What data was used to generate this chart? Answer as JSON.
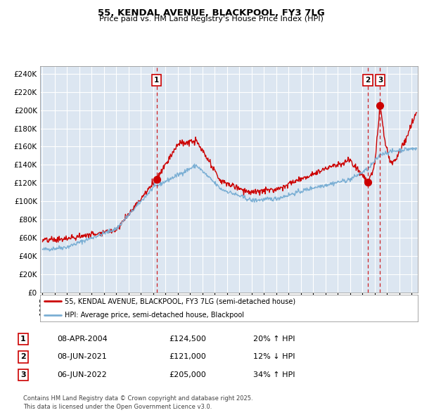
{
  "title": "55, KENDAL AVENUE, BLACKPOOL, FY3 7LG",
  "subtitle": "Price paid vs. HM Land Registry's House Price Index (HPI)",
  "ytick_values": [
    0,
    20000,
    40000,
    60000,
    80000,
    100000,
    120000,
    140000,
    160000,
    180000,
    200000,
    220000,
    240000
  ],
  "ylim": [
    0,
    248000
  ],
  "xlim_start": 1994.8,
  "xlim_end": 2025.5,
  "bg_color": "#dce6f1",
  "grid_color": "#ffffff",
  "line_color_property": "#cc0000",
  "line_color_hpi": "#7bafd4",
  "sale1_x": 2004.27,
  "sale1_y": 124500,
  "sale2_x": 2021.44,
  "sale2_y": 121000,
  "sale3_x": 2022.44,
  "sale3_y": 205000,
  "annotation_color": "#cc0000",
  "legend_label_property": "55, KENDAL AVENUE, BLACKPOOL, FY3 7LG (semi-detached house)",
  "legend_label_hpi": "HPI: Average price, semi-detached house, Blackpool",
  "table_data": [
    {
      "num": "1",
      "date": "08-APR-2004",
      "price": "£124,500",
      "change": "20% ↑ HPI"
    },
    {
      "num": "2",
      "date": "08-JUN-2021",
      "price": "£121,000",
      "change": "12% ↓ HPI"
    },
    {
      "num": "3",
      "date": "06-JUN-2022",
      "price": "£205,000",
      "change": "34% ↑ HPI"
    }
  ],
  "footer": "Contains HM Land Registry data © Crown copyright and database right 2025.\nThis data is licensed under the Open Government Licence v3.0."
}
